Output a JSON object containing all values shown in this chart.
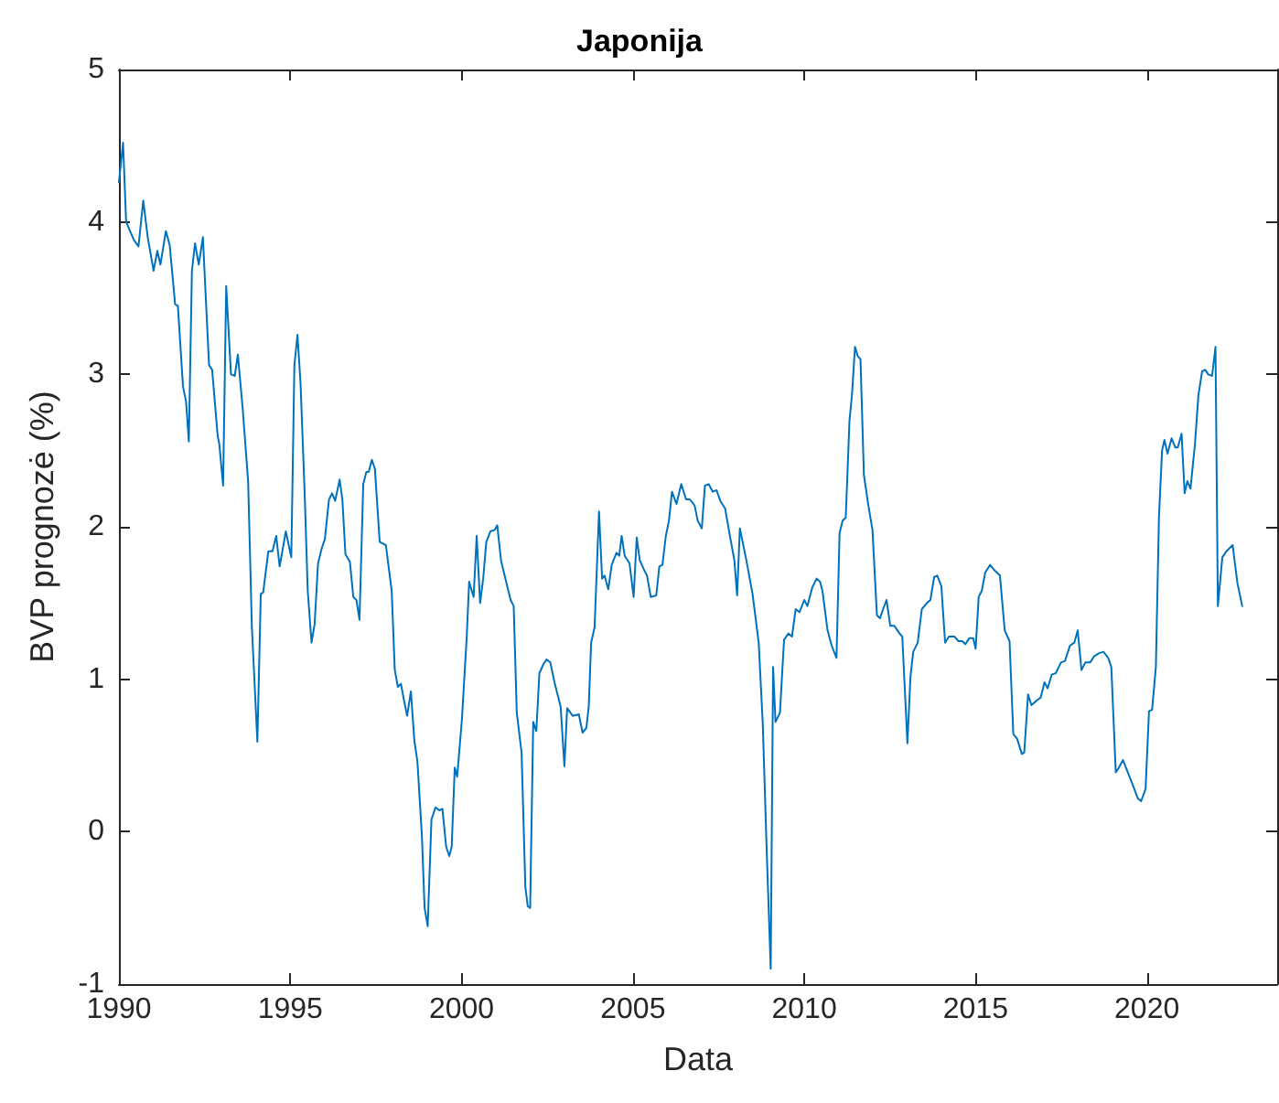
{
  "chart_data": {
    "type": "line",
    "title": "Japonija",
    "xlabel": "Data",
    "ylabel": "BVP prognozė (%)",
    "xlim": [
      1990,
      2023.8
    ],
    "xticks": [
      1990,
      1995,
      2000,
      2005,
      2010,
      2015,
      2020
    ],
    "ylim": [
      -1,
      5
    ],
    "yticks": [
      -1,
      0,
      1,
      2,
      3,
      4,
      5
    ],
    "marker": "none",
    "line_style": "solid",
    "series": [
      {
        "color": "#0072bd",
        "x": [
          1990.0,
          1990.12,
          1990.21,
          1990.44,
          1990.57,
          1990.71,
          1990.84,
          1991.01,
          1991.12,
          1991.21,
          1991.37,
          1991.48,
          1991.64,
          1991.72,
          1991.87,
          1991.96,
          1992.04,
          1992.13,
          1992.22,
          1992.33,
          1992.45,
          1992.63,
          1992.72,
          1992.88,
          1992.93,
          1993.04,
          1993.13,
          1993.27,
          1993.38,
          1993.47,
          1993.61,
          1993.77,
          1993.88,
          1994.04,
          1994.14,
          1994.21,
          1994.36,
          1994.48,
          1994.59,
          1994.69,
          1994.87,
          1995.03,
          1995.12,
          1995.21,
          1995.3,
          1995.42,
          1995.51,
          1995.62,
          1995.71,
          1995.81,
          1995.92,
          1996.01,
          1996.13,
          1996.22,
          1996.31,
          1996.44,
          1996.52,
          1996.61,
          1996.74,
          1996.84,
          1996.93,
          1997.02,
          1997.13,
          1997.22,
          1997.29,
          1997.38,
          1997.47,
          1997.61,
          1997.79,
          1997.96,
          1998.05,
          1998.14,
          1998.23,
          1998.32,
          1998.41,
          1998.52,
          1998.62,
          1998.71,
          1998.84,
          1998.92,
          1999.01,
          1999.12,
          1999.24,
          1999.35,
          1999.44,
          1999.55,
          1999.64,
          1999.71,
          1999.8,
          1999.87,
          2000.01,
          2000.15,
          2000.22,
          2000.35,
          2000.44,
          2000.54,
          2000.63,
          2000.72,
          2000.84,
          2000.97,
          2001.04,
          2001.15,
          2001.32,
          2001.43,
          2001.52,
          2001.61,
          2001.75,
          2001.86,
          2001.93,
          2002.0,
          2002.09,
          2002.18,
          2002.27,
          2002.39,
          2002.48,
          2002.59,
          2002.71,
          2002.89,
          2003.0,
          2003.08,
          2003.24,
          2003.42,
          2003.53,
          2003.64,
          2003.71,
          2003.78,
          2003.88,
          2004.01,
          2004.1,
          2004.17,
          2004.28,
          2004.38,
          2004.52,
          2004.6,
          2004.67,
          2004.76,
          2004.9,
          2005.02,
          2005.11,
          2005.2,
          2005.34,
          2005.41,
          2005.52,
          2005.68,
          2005.77,
          2005.86,
          2005.96,
          2006.05,
          2006.14,
          2006.27,
          2006.41,
          2006.55,
          2006.66,
          2006.8,
          2006.89,
          2007.01,
          2007.1,
          2007.21,
          2007.33,
          2007.44,
          2007.55,
          2007.69,
          2007.83,
          2007.96,
          2008.04,
          2008.12,
          2008.31,
          2008.49,
          2008.67,
          2008.79,
          2008.9,
          2009.02,
          2009.09,
          2009.16,
          2009.29,
          2009.41,
          2009.54,
          2009.64,
          2009.75,
          2009.86,
          2010.0,
          2010.09,
          2010.23,
          2010.36,
          2010.46,
          2010.53,
          2010.68,
          2010.8,
          2010.94,
          2011.03,
          2011.12,
          2011.21,
          2011.32,
          2011.39,
          2011.48,
          2011.56,
          2011.64,
          2011.74,
          2011.87,
          2011.99,
          2012.12,
          2012.21,
          2012.3,
          2012.4,
          2012.51,
          2012.63,
          2012.78,
          2012.86,
          2013.01,
          2013.1,
          2013.18,
          2013.31,
          2013.43,
          2013.58,
          2013.68,
          2013.79,
          2013.88,
          2014.0,
          2014.11,
          2014.22,
          2014.38,
          2014.5,
          2014.61,
          2014.7,
          2014.82,
          2014.93,
          2015.0,
          2015.09,
          2015.18,
          2015.28,
          2015.42,
          2015.53,
          2015.71,
          2015.85,
          2015.99,
          2016.1,
          2016.21,
          2016.35,
          2016.42,
          2016.53,
          2016.63,
          2016.78,
          2016.9,
          2017.01,
          2017.1,
          2017.22,
          2017.34,
          2017.49,
          2017.61,
          2017.75,
          2017.88,
          2017.98,
          2018.09,
          2018.2,
          2018.34,
          2018.46,
          2018.59,
          2018.73,
          2018.87,
          2018.96,
          2019.09,
          2019.18,
          2019.3,
          2019.44,
          2019.58,
          2019.73,
          2019.83,
          2019.96,
          2020.06,
          2020.15,
          2020.26,
          2020.35,
          2020.44,
          2020.51,
          2020.6,
          2020.72,
          2020.83,
          2020.9,
          2021.01,
          2021.1,
          2021.18,
          2021.27,
          2021.4,
          2021.5,
          2021.61,
          2021.7,
          2021.79,
          2021.9,
          2022.0,
          2022.07,
          2022.2,
          2022.32,
          2022.5,
          2022.64,
          2022.78
        ],
        "values": [
          4.26,
          4.52,
          4.0,
          3.88,
          3.84,
          4.14,
          3.9,
          3.68,
          3.81,
          3.72,
          3.94,
          3.85,
          3.46,
          3.45,
          2.92,
          2.82,
          2.56,
          3.68,
          3.86,
          3.72,
          3.9,
          3.06,
          3.03,
          2.6,
          2.54,
          2.27,
          3.58,
          3.0,
          2.99,
          3.13,
          2.78,
          2.3,
          1.34,
          0.59,
          1.56,
          1.57,
          1.84,
          1.84,
          1.94,
          1.74,
          1.97,
          1.8,
          3.06,
          3.26,
          2.94,
          2.22,
          1.58,
          1.24,
          1.36,
          1.76,
          1.86,
          1.92,
          2.18,
          2.22,
          2.17,
          2.31,
          2.18,
          1.82,
          1.77,
          1.54,
          1.52,
          1.39,
          2.28,
          2.36,
          2.36,
          2.44,
          2.38,
          1.9,
          1.88,
          1.58,
          1.06,
          0.95,
          0.97,
          0.86,
          0.76,
          0.92,
          0.6,
          0.46,
          -0.02,
          -0.5,
          -0.62,
          0.08,
          0.16,
          0.14,
          0.15,
          -0.1,
          -0.16,
          -0.1,
          0.42,
          0.36,
          0.74,
          1.28,
          1.64,
          1.54,
          1.94,
          1.5,
          1.66,
          1.9,
          1.97,
          1.98,
          2.01,
          1.78,
          1.62,
          1.52,
          1.48,
          0.78,
          0.52,
          -0.36,
          -0.49,
          -0.5,
          0.72,
          0.66,
          1.04,
          1.1,
          1.13,
          1.11,
          0.98,
          0.82,
          0.43,
          0.81,
          0.76,
          0.77,
          0.65,
          0.68,
          0.82,
          1.24,
          1.34,
          2.1,
          1.66,
          1.68,
          1.59,
          1.75,
          1.83,
          1.81,
          1.94,
          1.81,
          1.76,
          1.54,
          1.93,
          1.78,
          1.71,
          1.68,
          1.54,
          1.55,
          1.74,
          1.75,
          1.94,
          2.04,
          2.23,
          2.15,
          2.28,
          2.18,
          2.18,
          2.14,
          2.04,
          1.99,
          2.27,
          2.28,
          2.23,
          2.24,
          2.17,
          2.12,
          1.94,
          1.78,
          1.55,
          1.99,
          1.78,
          1.56,
          1.24,
          0.7,
          -0.1,
          -0.9,
          1.08,
          0.72,
          0.78,
          1.26,
          1.3,
          1.28,
          1.46,
          1.44,
          1.52,
          1.48,
          1.6,
          1.66,
          1.64,
          1.58,
          1.32,
          1.22,
          1.14,
          1.96,
          2.04,
          2.06,
          2.7,
          2.86,
          3.18,
          3.12,
          3.1,
          2.34,
          2.14,
          1.98,
          1.42,
          1.4,
          1.46,
          1.52,
          1.35,
          1.35,
          1.3,
          1.28,
          0.58,
          1.02,
          1.18,
          1.24,
          1.46,
          1.5,
          1.52,
          1.67,
          1.68,
          1.61,
          1.24,
          1.28,
          1.28,
          1.25,
          1.25,
          1.23,
          1.27,
          1.27,
          1.2,
          1.54,
          1.58,
          1.7,
          1.75,
          1.72,
          1.68,
          1.32,
          1.25,
          0.64,
          0.61,
          0.51,
          0.52,
          0.9,
          0.83,
          0.86,
          0.88,
          0.98,
          0.94,
          1.03,
          1.04,
          1.11,
          1.12,
          1.22,
          1.24,
          1.32,
          1.06,
          1.11,
          1.11,
          1.15,
          1.17,
          1.18,
          1.14,
          1.08,
          0.39,
          0.42,
          0.47,
          0.39,
          0.31,
          0.22,
          0.2,
          0.28,
          0.79,
          0.8,
          1.08,
          2.06,
          2.5,
          2.57,
          2.48,
          2.58,
          2.52,
          2.52,
          2.61,
          2.22,
          2.3,
          2.25,
          2.54,
          2.86,
          3.02,
          3.03,
          3.0,
          2.99,
          3.18,
          1.48,
          1.8,
          1.84,
          1.88,
          1.63,
          1.48
        ]
      }
    ]
  }
}
